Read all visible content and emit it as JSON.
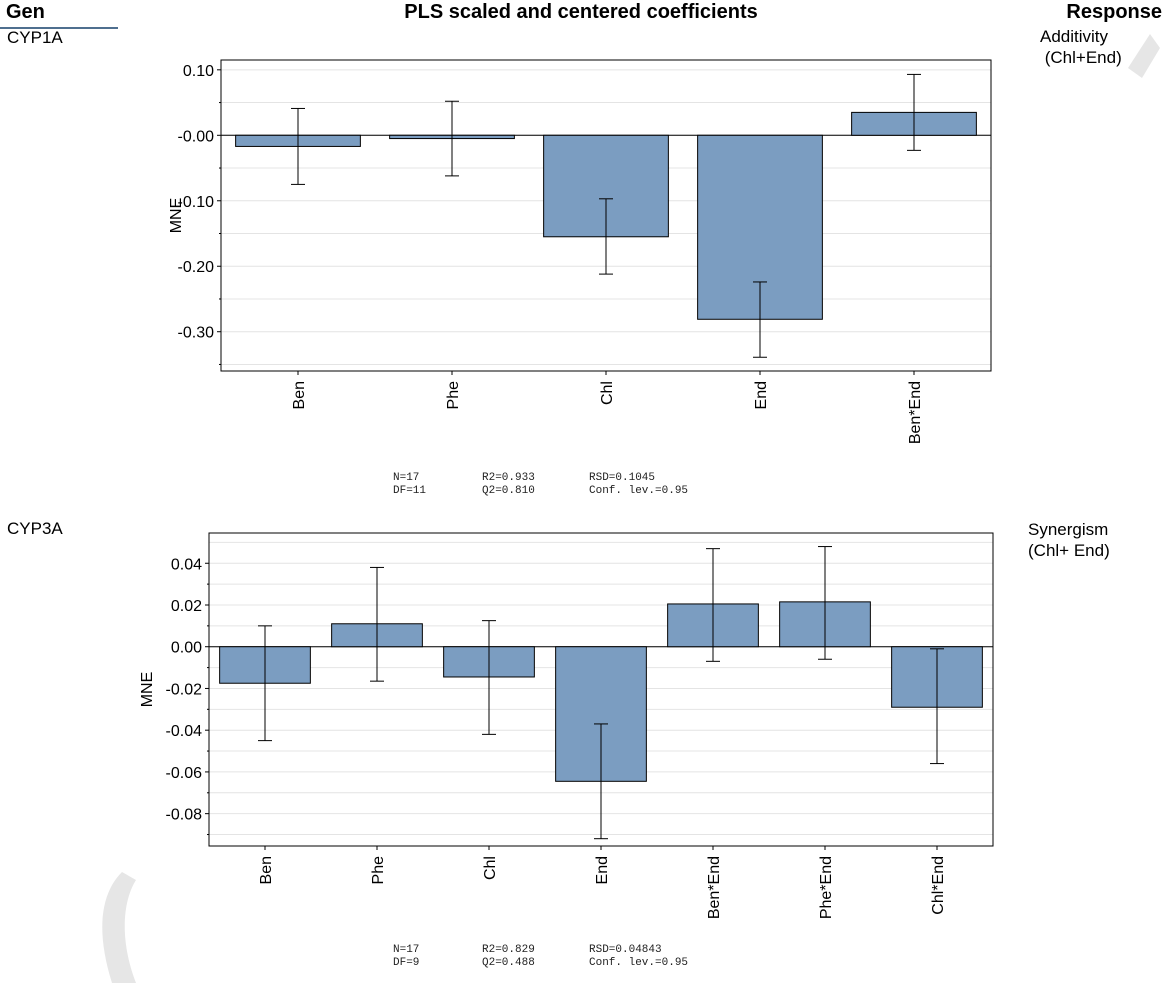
{
  "header": {
    "gen_label": "Gen",
    "title": "PLS scaled and centered coefficients",
    "response_label": "Response"
  },
  "rows": [
    {
      "gen": "CYP1A",
      "response": "Additivity\n (Chl+End)",
      "stats": {
        "n": "N=17",
        "df": "DF=11",
        "r2": "R2=0.933",
        "q2": "Q2=0.810",
        "rsd": "RSD=0.1045",
        "conf": "Conf. lev.=0.95"
      }
    },
    {
      "gen": "CYP3A",
      "response": "Synergism\n(Chl+ End)",
      "stats": {
        "n": "N=17",
        "df": "DF=9",
        "r2": "R2=0.829",
        "q2": "Q2=0.488",
        "rsd": "RSD=0.04843",
        "conf": "Conf. lev.=0.95"
      }
    }
  ],
  "chart_data": [
    {
      "type": "bar",
      "title": "",
      "xlabel": "",
      "ylabel": "MNE",
      "categories": [
        "Ben",
        "Phe",
        "Chl",
        "End",
        "Ben*End"
      ],
      "values": [
        -0.017,
        -0.005,
        -0.155,
        -0.281,
        0.035
      ],
      "error_low": [
        -0.075,
        -0.062,
        -0.212,
        -0.339,
        -0.023
      ],
      "error_high": [
        0.041,
        0.052,
        -0.097,
        -0.224,
        0.093
      ],
      "ylim": [
        -0.36,
        0.115
      ],
      "yticks": [
        0.1,
        0.0,
        -0.1,
        -0.2,
        -0.3
      ],
      "yticklabels": [
        "0.10",
        "-0.00",
        "-0.10",
        "-0.20",
        "-0.30"
      ],
      "grid": true,
      "bar_color": "#7b9dc1"
    },
    {
      "type": "bar",
      "title": "",
      "xlabel": "",
      "ylabel": "MNE",
      "categories": [
        "Ben",
        "Phe",
        "Chl",
        "End",
        "Ben*End",
        "Phe*End",
        "Chl*End"
      ],
      "values": [
        -0.0175,
        0.011,
        -0.0145,
        -0.0645,
        0.0205,
        0.0215,
        -0.029
      ],
      "error_low": [
        -0.045,
        -0.0165,
        -0.042,
        -0.092,
        -0.007,
        -0.006,
        -0.056
      ],
      "error_high": [
        0.01,
        0.038,
        0.0125,
        -0.037,
        0.047,
        0.048,
        -0.001
      ],
      "ylim": [
        -0.0955,
        0.0545
      ],
      "yticks": [
        0.04,
        0.02,
        0.0,
        -0.02,
        -0.04,
        -0.06,
        -0.08
      ],
      "yticklabels": [
        "0.04",
        "0.02",
        "0.00",
        "-0.02",
        "-0.04",
        "-0.06",
        "-0.08"
      ],
      "grid": true,
      "bar_color": "#7b9dc1"
    }
  ]
}
